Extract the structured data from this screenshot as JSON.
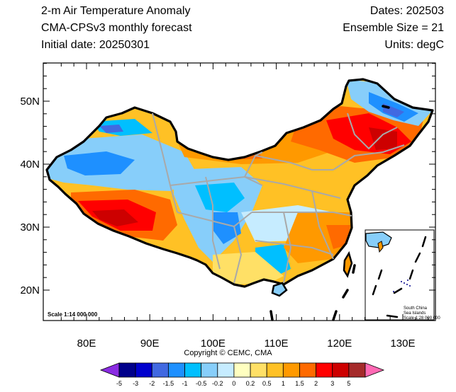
{
  "header": {
    "left": [
      "2-m Air Temperature Anomaly",
      "CMA-CPSv3 monthly forecast",
      "Initial date: 20250301"
    ],
    "right": [
      "Dates: 202503",
      "Ensemble Size = 21",
      "Units: degC"
    ]
  },
  "axes": {
    "lat_labels": [
      "50N",
      "40N",
      "30N",
      "20N"
    ],
    "lon_labels": [
      "80E",
      "90E",
      "100E",
      "110E",
      "120E",
      "130E"
    ]
  },
  "scale_main": "Scale 1:14 000 000",
  "inset": {
    "title_line1": "South China",
    "title_line2": "Sea Islands",
    "scale": "Scale 1:28 000 000"
  },
  "copyright": "Copyright © CEMC, CMA",
  "colorbar": {
    "labels": [
      "-5",
      "-3",
      "-2",
      "-1.5",
      "-1",
      "-0.5",
      "-0.2",
      "0",
      "0.2",
      "0.5",
      "1",
      "1.5",
      "2",
      "3",
      "5"
    ],
    "colors": [
      "#8a2be2",
      "#00008b",
      "#0000cd",
      "#4169e1",
      "#1e90ff",
      "#00bfff",
      "#87cefa",
      "#c6ecff",
      "#ffffc0",
      "#ffe066",
      "#ffc125",
      "#ff9900",
      "#ff6a00",
      "#ff0000",
      "#cd0000",
      "#a52a2a",
      "#ff69b4"
    ]
  }
}
